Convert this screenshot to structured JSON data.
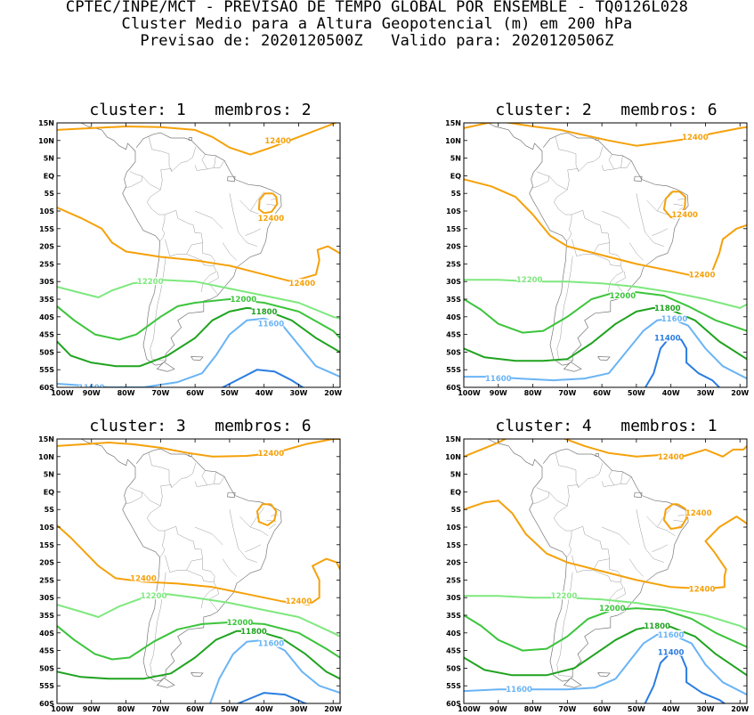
{
  "header": {
    "line1": "CPTEC/INPE/MCT - PREVISAO DE TEMPO GLOBAL POR ENSEMBLE - TQ0126L028",
    "line2": "Cluster Medio para a Altura Geopotencial (m) em 200 hPa",
    "line3": "Previsao de: 2020120500Z   Valido para: 2020120506Z"
  },
  "colors": {
    "c12400": "#f5a10a",
    "c12200": "#7ee87e",
    "c12000": "#3cc43c",
    "c11800": "#1fa31f",
    "c11600": "#6ab4f5",
    "c11400": "#2a7de1"
  },
  "axes": {
    "lat_labels": [
      "15N",
      "10N",
      "5N",
      "EQ",
      "5S",
      "10S",
      "15S",
      "20S",
      "25S",
      "30S",
      "35S",
      "40S",
      "45S",
      "50S",
      "55S",
      "60S"
    ],
    "lon_labels": [
      "100W",
      "90W",
      "80W",
      "70W",
      "60W",
      "50W",
      "40W",
      "30W",
      "20W"
    ]
  },
  "panels": [
    {
      "title": "cluster: 1   membros: 2",
      "labels": [
        {
          "text": "12400",
          "level": "c12400"
        },
        {
          "text": "12400",
          "level": "c12400"
        },
        {
          "text": "12400",
          "level": "c12400"
        },
        {
          "text": "12200",
          "level": "c12200"
        },
        {
          "text": "12000",
          "level": "c12000"
        },
        {
          "text": "11800",
          "level": "c11800"
        },
        {
          "text": "11600",
          "level": "c11600"
        },
        {
          "text": "11600",
          "level": "c11600"
        }
      ]
    },
    {
      "title": "cluster: 2   membros: 6",
      "labels": [
        {
          "text": "12400",
          "level": "c12400"
        },
        {
          "text": "12400",
          "level": "c12400"
        },
        {
          "text": "12400",
          "level": "c12400"
        },
        {
          "text": "12200",
          "level": "c12200"
        },
        {
          "text": "12000",
          "level": "c12000"
        },
        {
          "text": "11800",
          "level": "c11800"
        },
        {
          "text": "11600",
          "level": "c11600"
        },
        {
          "text": "11600",
          "level": "c11600"
        },
        {
          "text": "11400",
          "level": "c11400"
        }
      ]
    },
    {
      "title": "cluster: 3   membros: 6",
      "labels": [
        {
          "text": "12400",
          "level": "c12400"
        },
        {
          "text": "12400",
          "level": "c12400"
        },
        {
          "text": "12400",
          "level": "c12400"
        },
        {
          "text": "12200",
          "level": "c12200"
        },
        {
          "text": "12000",
          "level": "c12000"
        },
        {
          "text": "11800",
          "level": "c11800"
        },
        {
          "text": "11600",
          "level": "c11600"
        }
      ]
    },
    {
      "title": "cluster: 4   membros: 1",
      "labels": [
        {
          "text": "12400",
          "level": "c12400"
        },
        {
          "text": "12400",
          "level": "c12400"
        },
        {
          "text": "12400",
          "level": "c12400"
        },
        {
          "text": "12200",
          "level": "c12200"
        },
        {
          "text": "12000",
          "level": "c12000"
        },
        {
          "text": "11800",
          "level": "c11800"
        },
        {
          "text": "11600",
          "level": "c11600"
        },
        {
          "text": "11600",
          "level": "c11600"
        },
        {
          "text": "11400",
          "level": "c11400"
        }
      ]
    }
  ]
}
